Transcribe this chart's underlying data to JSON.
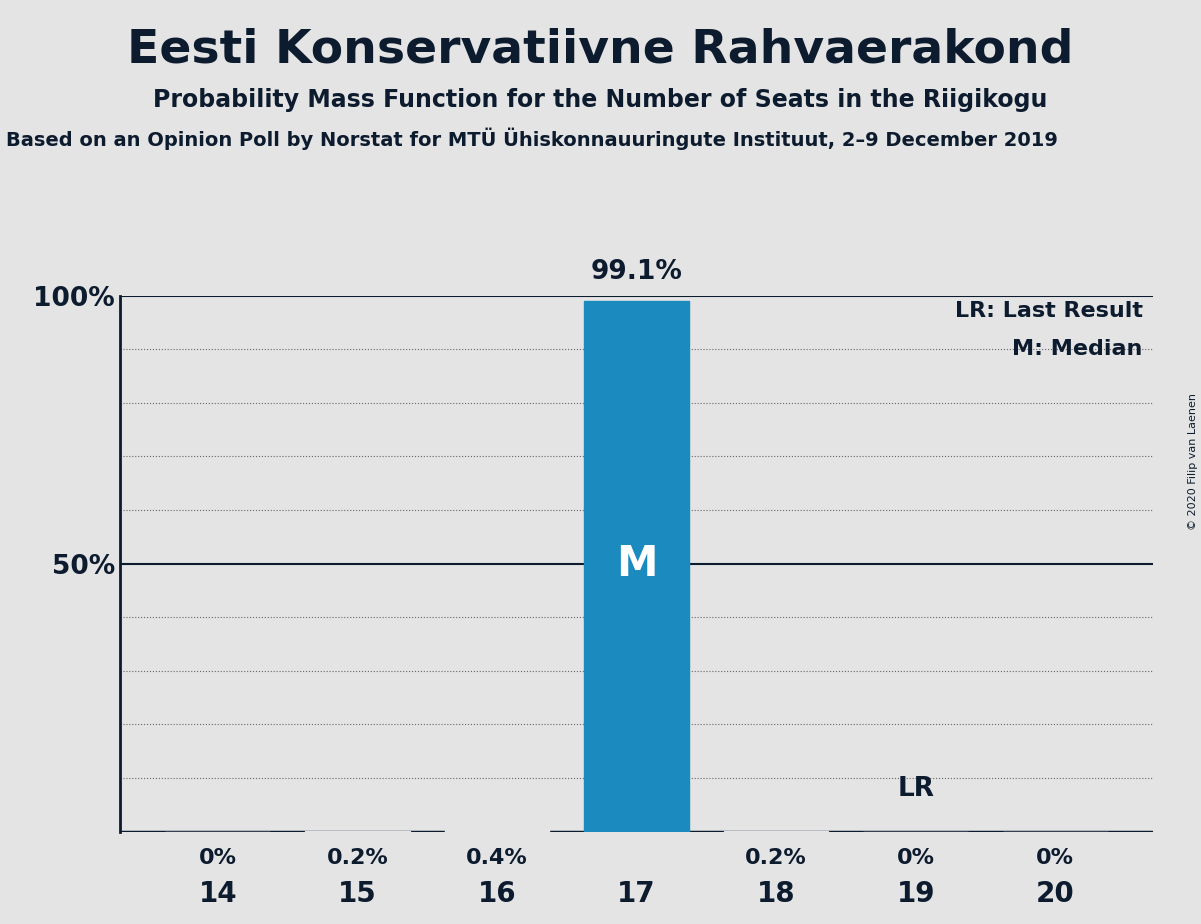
{
  "title": "Eesti Konservatiivne Rahvaerakond",
  "subtitle": "Probability Mass Function for the Number of Seats in the Riigikogu",
  "source_line": "Based on an Opinion Poll by Norstat for MTÜ Ühiskonnauuringute Instituut, 2–9 December 2019",
  "copyright": "© 2020 Filip van Laenen",
  "x_values": [
    14,
    15,
    16,
    17,
    18,
    19,
    20
  ],
  "y_values": [
    0.0,
    0.2,
    0.4,
    99.1,
    0.2,
    0.0,
    0.0
  ],
  "pct_labels": [
    "0%",
    "0.2%",
    "0.4%",
    "99.1%",
    "0.2%",
    "0%",
    "0%"
  ],
  "bar_color": "#1a8abf",
  "background_color": "#e4e4e4",
  "label_color": "#0d1b2e",
  "median_bar": 17,
  "last_result_bar": 19,
  "ylim": [
    0,
    100
  ],
  "ylabel_ticks": [
    50,
    100
  ],
  "grid_color": "#666666",
  "bar_width": 0.75,
  "lr_label": "LR",
  "m_label": "M",
  "legend_lr": "LR: Last Result",
  "legend_m": "M: Median"
}
